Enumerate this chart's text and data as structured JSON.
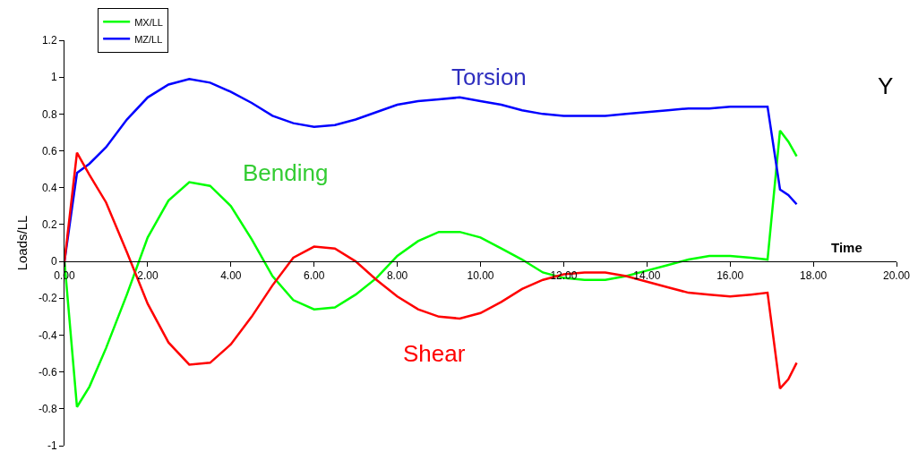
{
  "chart_data": {
    "type": "line",
    "xlabel": "Time",
    "ylabel": "Loads/LL",
    "x": [
      0,
      0.3,
      0.6,
      1,
      1.5,
      2,
      2.5,
      3,
      3.5,
      4,
      4.5,
      5,
      5.5,
      6,
      6.5,
      7,
      7.5,
      8,
      8.5,
      9,
      9.5,
      10,
      10.5,
      11,
      11.5,
      12,
      12.5,
      13,
      13.5,
      14,
      14.5,
      15,
      15.5,
      16,
      16.5,
      16.9,
      17.2,
      17.4,
      17.6
    ],
    "series": [
      {
        "name": "MX/LL",
        "color": "#00ff00",
        "values": [
          0,
          -0.79,
          -0.68,
          -0.47,
          -0.18,
          0.13,
          0.33,
          0.43,
          0.41,
          0.3,
          0.12,
          -0.08,
          -0.21,
          -0.26,
          -0.25,
          -0.18,
          -0.09,
          0.03,
          0.11,
          0.16,
          0.16,
          0.13,
          0.07,
          0.01,
          -0.06,
          -0.09,
          -0.1,
          -0.1,
          -0.08,
          -0.05,
          -0.02,
          0.01,
          0.03,
          0.03,
          0.02,
          0.01,
          0.71,
          0.65,
          0.57
        ]
      },
      {
        "name": "MZ/LL",
        "color": "#0000ff",
        "values": [
          0,
          0.48,
          0.53,
          0.62,
          0.77,
          0.89,
          0.96,
          0.99,
          0.97,
          0.92,
          0.86,
          0.79,
          0.75,
          0.73,
          0.74,
          0.77,
          0.81,
          0.85,
          0.87,
          0.88,
          0.89,
          0.87,
          0.85,
          0.82,
          0.8,
          0.79,
          0.79,
          0.79,
          0.8,
          0.81,
          0.82,
          0.83,
          0.83,
          0.84,
          0.84,
          0.84,
          0.39,
          0.36,
          0.31
        ]
      },
      {
        "color": "#ff0000",
        "values": [
          0,
          0.59,
          0.47,
          0.32,
          0.05,
          -0.23,
          -0.44,
          -0.56,
          -0.55,
          -0.45,
          -0.3,
          -0.13,
          0.02,
          0.08,
          0.07,
          0.0,
          -0.1,
          -0.19,
          -0.26,
          -0.3,
          -0.31,
          -0.28,
          -0.22,
          -0.15,
          -0.1,
          -0.07,
          -0.06,
          -0.06,
          -0.08,
          -0.11,
          -0.14,
          -0.17,
          -0.18,
          -0.19,
          -0.18,
          -0.17,
          -0.69,
          -0.64,
          -0.55
        ]
      }
    ],
    "xlim": [
      0,
      20
    ],
    "xticks": [
      {
        "value": 0,
        "label": "0.00"
      },
      {
        "value": 2,
        "label": "2.00"
      },
      {
        "value": 4,
        "label": "4.00"
      },
      {
        "value": 6,
        "label": "6.00"
      },
      {
        "value": 8,
        "label": "8.00"
      },
      {
        "value": 10,
        "label": "10.00"
      },
      {
        "value": 12,
        "label": "12.00"
      },
      {
        "value": 14,
        "label": "14.00"
      },
      {
        "value": 16,
        "label": "16.00"
      },
      {
        "value": 18,
        "label": "18.00"
      },
      {
        "value": 20,
        "label": "20.00"
      }
    ],
    "ylim": [
      -1,
      1.2
    ],
    "yticks": [
      -1,
      -0.8,
      -0.6,
      -0.4,
      -0.2,
      0,
      0.2,
      0.4,
      0.6,
      0.8,
      1,
      1.2
    ],
    "annotations": [
      "Torsion",
      "Bending",
      "Shear",
      "Y"
    ],
    "legend": "top left",
    "marker": "none",
    "line_style": "solid"
  }
}
